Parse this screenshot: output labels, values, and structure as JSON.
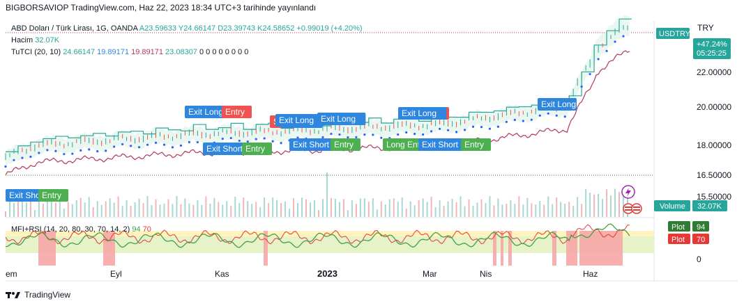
{
  "header": {
    "published": "BIGBORSAVIOP TradingView.com, Haz 22, 2023 18:34 UTC+3 tarihinde yayınlandı"
  },
  "legend": {
    "symbol": "ABD Doları / Türk Lirası, 1G, OANDA",
    "ohlc": {
      "o_label": "A",
      "o": "23.59633",
      "h_label": "Y",
      "h": "24.66147",
      "l_label": "D",
      "l": "23.39743",
      "c_label": "K",
      "c": "24.58652",
      "change": "+0.99019 (+4.20%)"
    },
    "volume_label": "Hacim",
    "volume_value": "32.07K",
    "indicator": "TuTCI (20, 10)",
    "indicator_values": [
      "24.66147",
      "19.89171",
      "19.89171",
      "23.08307"
    ],
    "indicator_zeros": [
      "0",
      "0",
      "0",
      "0",
      "0",
      "0",
      "0",
      "0"
    ],
    "mfi_label": "MFI+RSI (14, 20, 80, 30, 70, 14, 2)",
    "mfi_v1": "94",
    "mfi_v2": "70"
  },
  "price_axis": {
    "currency": "TRY",
    "symbol_badge": "USDTRY",
    "change_pct": "+47.24%",
    "countdown": "05:25:25",
    "ticks": [
      "22.00000",
      "20.00000",
      "18.00000",
      "16.50000",
      "15.50000"
    ],
    "volume_badge_label": "Volume",
    "volume_badge_value": "32.07K",
    "plot1_label": "Plot",
    "plot1_value": "94",
    "plot2_label": "Plot",
    "plot2_value": "70",
    "rsi_zero": "0"
  },
  "time_axis": [
    "em",
    "Eyl",
    "Kas",
    "2023",
    "Mar",
    "Nis",
    "Haz"
  ],
  "signals": [
    {
      "text": "Exit Long",
      "kind": "blue"
    },
    {
      "text": "Entry",
      "kind": "red"
    },
    {
      "text": "Exit Long",
      "kind": "blue"
    },
    {
      "text": "S",
      "kind": "red"
    },
    {
      "text": "Exit Long",
      "kind": "blue"
    },
    {
      "text": "Exit Long",
      "kind": "blue"
    },
    {
      "text": "Entry",
      "kind": "red"
    },
    {
      "text": "Exit Long",
      "kind": "blue"
    },
    {
      "text": "Exit Short",
      "kind": "blue"
    },
    {
      "text": "Entry",
      "kind": "green"
    },
    {
      "text": "Exit Short",
      "kind": "blue"
    },
    {
      "text": "Entry",
      "kind": "green"
    },
    {
      "text": "Long Entry",
      "kind": "green"
    },
    {
      "text": "Exit Short",
      "kind": "blue"
    },
    {
      "text": "Entry",
      "kind": "green"
    },
    {
      "text": "Exit Short",
      "kind": "blue"
    },
    {
      "text": "Entry",
      "kind": "green"
    }
  ],
  "footer": {
    "brand": "TradingView"
  },
  "colors": {
    "up": "#26a69a",
    "down": "#ef5350",
    "dots": "#2962ff",
    "lower": "#b03a5b",
    "rsi": "#e53935",
    "mfi": "#43a047",
    "blue_label": "#2e86de",
    "green_label": "#4caf50",
    "red_label": "#ef5350"
  },
  "chart_data": {
    "type": "line",
    "title": "ABD Doları / Türk Lirası, 1G, OANDA",
    "x": [
      "em",
      "Eyl",
      "Kas",
      "2023",
      "Mar",
      "Nis",
      "Haz"
    ],
    "series": [
      {
        "name": "USDTRY",
        "values": [
          17.9,
          18.3,
          18.6,
          18.8,
          18.9,
          19.2,
          24.6
        ]
      }
    ],
    "ylim": [
      15.5,
      24.7
    ]
  }
}
